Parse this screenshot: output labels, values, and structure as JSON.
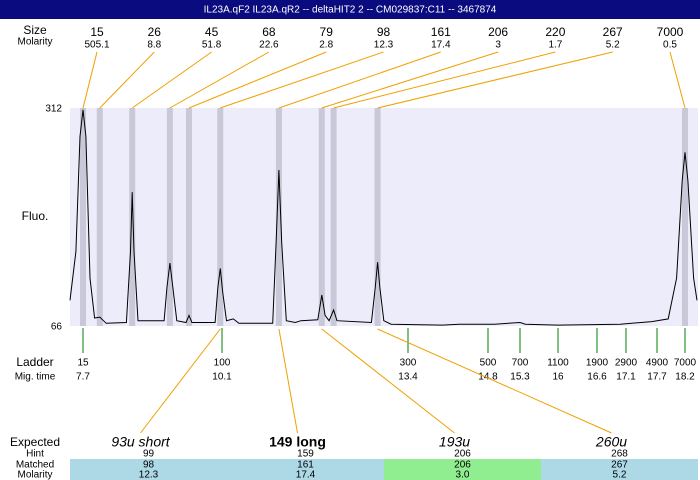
{
  "chart_data": {
    "type": "line",
    "title": "IL23A.qF2 IL23A.qR2 -- deltaHIT2 2 -- CM029837:C11 -- 3467874",
    "ylabel": "Fluo.",
    "ylim": [
      66,
      312
    ],
    "yticks": [
      66,
      312
    ],
    "xlim": [
      7.48,
      18.41
    ],
    "color": "#000000",
    "x": [
      7.48,
      7.58,
      7.65,
      7.7,
      7.75,
      7.82,
      7.9,
      7.99,
      8.1,
      8.45,
      8.52,
      8.55,
      8.58,
      8.65,
      9.1,
      9.15,
      9.2,
      9.25,
      9.32,
      9.48,
      9.53,
      9.58,
      9.98,
      10.03,
      10.07,
      10.11,
      10.18,
      10.3,
      10.4,
      11.0,
      11.06,
      11.11,
      11.16,
      11.24,
      11.4,
      11.5,
      11.8,
      11.87,
      11.93,
      12.0,
      12.08,
      12.14,
      12.75,
      12.82,
      12.86,
      12.9,
      12.97,
      13.1,
      14.0,
      14.3,
      14.9,
      15.3,
      15.4,
      16.0,
      17.0,
      17.6,
      17.9,
      18.05,
      18.15,
      18.2,
      18.25,
      18.35,
      18.41
    ],
    "values": [
      95,
      150,
      280,
      310,
      280,
      120,
      75,
      76,
      69,
      70,
      150,
      217,
      150,
      72,
      72,
      110,
      137,
      110,
      72,
      70,
      78,
      70,
      70,
      110,
      131,
      105,
      72,
      74,
      69,
      69,
      160,
      242,
      160,
      72,
      70,
      72,
      73,
      101,
      78,
      72,
      84,
      72,
      70,
      110,
      138,
      110,
      72,
      68,
      67,
      68,
      68,
      70,
      68,
      67,
      68,
      71,
      74,
      120,
      230,
      262,
      230,
      120,
      95
    ],
    "sizing": {
      "size_label": "Size",
      "molarity_label": "Molarity",
      "sizes": [
        15,
        26,
        45,
        68,
        79,
        98,
        161,
        206,
        220,
        267,
        7000
      ],
      "molarities": [
        505.1,
        8.8,
        51.8,
        22.6,
        2.8,
        12.3,
        17.4,
        3,
        1.7,
        5.2,
        0.5
      ],
      "times": [
        7.7,
        7.99,
        8.55,
        9.2,
        9.53,
        10.07,
        11.11,
        11.87,
        12.08,
        12.86,
        18.2
      ],
      "band_color": "#c8c8d8",
      "line_color": "#f0a000"
    },
    "ladder": {
      "label": "Ladder",
      "time_label": "Mig. time",
      "sizes": [
        15,
        100,
        300,
        500,
        700,
        1100,
        1900,
        2900,
        4900,
        7000
      ],
      "times": [
        7.7,
        10.1,
        13.4,
        14.8,
        15.3,
        16,
        16.6,
        17.1,
        17.7,
        18.2
      ],
      "color": "#008000"
    }
  },
  "table": {
    "expected": {
      "label": "Expected",
      "names": [
        "93u short",
        "149 long",
        "193u",
        "260u"
      ],
      "styles": [
        "italic",
        "bold",
        "italic",
        "italic"
      ]
    },
    "hint": {
      "label": "Hint",
      "values": [
        99,
        159,
        206,
        268
      ]
    },
    "matched": {
      "label": "Matched",
      "values": [
        98,
        161,
        206,
        267
      ]
    },
    "molarity": {
      "label": "Molarity",
      "values": [
        "12.3",
        "17.4",
        "3.0",
        "5.2"
      ]
    },
    "colors": [
      "#add8e6",
      "#add8e6",
      "#90ee90",
      "#add8e6"
    ]
  }
}
